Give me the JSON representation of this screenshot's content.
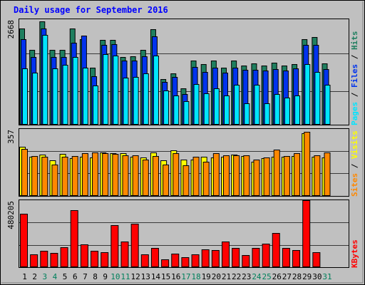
{
  "title": "Daily usage for September 2016",
  "colors": {
    "background": "#C0C0C0",
    "border": "#000000",
    "title": "#0000FF",
    "hits": "#1F7F5F",
    "files": "#0033EE",
    "pages": "#00E5FF",
    "visits": "#FFFF00",
    "sites": "#FF8800",
    "kbytes": "#FF0000",
    "weekend_label": "#00805C",
    "weekday_label": "#000000"
  },
  "chart_data": [
    {
      "type": "bar",
      "panel": "hits-files-pages",
      "ymax_label": "2668",
      "ylim": [
        0,
        2668
      ],
      "legend": [
        {
          "label": "Hits",
          "color": "#1F7F5F"
        },
        {
          "label": "Files",
          "color": "#0033EE"
        },
        {
          "label": "Pages",
          "color": "#00E5FF"
        }
      ],
      "categories": [
        "1",
        "2",
        "3",
        "4",
        "5",
        "6",
        "7",
        "8",
        "9",
        "10",
        "11",
        "12",
        "13",
        "14",
        "15",
        "16",
        "17",
        "18",
        "19",
        "20",
        "21",
        "22",
        "23",
        "24",
        "25",
        "26",
        "27",
        "28",
        "29",
        "30",
        "31"
      ],
      "weekend_days": [
        "3",
        "4",
        "10",
        "11",
        "17",
        "18",
        "24",
        "25",
        "31"
      ],
      "series": [
        {
          "name": "Hits",
          "values": [
            2470,
            1920,
            2650,
            1920,
            1920,
            2470,
            2200,
            1470,
            2180,
            2170,
            1740,
            1760,
            1920,
            2450,
            1170,
            1310,
            930,
            1640,
            1560,
            1640,
            1460,
            1650,
            1520,
            1580,
            1510,
            1590,
            1510,
            1550,
            2200,
            2240,
            1570
          ]
        },
        {
          "name": "Files",
          "values": [
            2200,
            1740,
            2460,
            1740,
            1740,
            2110,
            2280,
            1250,
            2050,
            2060,
            1640,
            1640,
            1760,
            2270,
            1100,
            1230,
            780,
            1480,
            1360,
            1460,
            1340,
            1470,
            1400,
            1410,
            1380,
            1420,
            1390,
            1440,
            2050,
            2050,
            1430
          ]
        },
        {
          "name": "Pages",
          "values": [
            1450,
            1330,
            2300,
            1450,
            1540,
            1730,
            1470,
            1000,
            1810,
            1780,
            1210,
            1230,
            1320,
            1770,
            880,
            750,
            600,
            1050,
            800,
            930,
            750,
            1020,
            550,
            1030,
            540,
            790,
            700,
            750,
            1560,
            1360,
            1030
          ]
        }
      ]
    },
    {
      "type": "bar",
      "panel": "visits-sites",
      "ymax_label": "357",
      "ylim": [
        0,
        357
      ],
      "legend": [
        {
          "label": "Visits",
          "color": "#FFFF00"
        },
        {
          "label": "Sites",
          "color": "#FF8800"
        }
      ],
      "categories": [
        "1",
        "2",
        "3",
        "4",
        "5",
        "6",
        "7",
        "8",
        "9",
        "10",
        "11",
        "12",
        "13",
        "14",
        "15",
        "16",
        "17",
        "18",
        "19",
        "20",
        "21",
        "22",
        "23",
        "24",
        "25",
        "26",
        "27",
        "28",
        "29",
        "30",
        "31"
      ],
      "series": [
        {
          "name": "Visits",
          "values": [
            268,
            212,
            225,
            194,
            228,
            204,
            214,
            209,
            235,
            231,
            231,
            215,
            210,
            235,
            195,
            247,
            198,
            199,
            215,
            211,
            214,
            227,
            216,
            187,
            207,
            213,
            212,
            218,
            342,
            214,
            210
          ]
        },
        {
          "name": "Sites",
          "values": [
            256,
            218,
            212,
            172,
            212,
            218,
            234,
            237,
            231,
            228,
            222,
            220,
            198,
            216,
            172,
            234,
            166,
            212,
            185,
            233,
            222,
            222,
            222,
            197,
            209,
            252,
            217,
            232,
            350,
            222,
            236
          ]
        }
      ]
    },
    {
      "type": "bar",
      "panel": "kbytes",
      "ymax_label": "480205",
      "ylim": [
        0,
        480205
      ],
      "legend": [
        {
          "label": "KBytes",
          "color": "#FF0000"
        }
      ],
      "categories": [
        "1",
        "2",
        "3",
        "4",
        "5",
        "6",
        "7",
        "8",
        "9",
        "10",
        "11",
        "12",
        "13",
        "14",
        "15",
        "16",
        "17",
        "18",
        "19",
        "20",
        "21",
        "22",
        "23",
        "24",
        "25",
        "26",
        "27",
        "28",
        "29",
        "30",
        "31"
      ],
      "series": [
        {
          "name": "KBytes",
          "values": [
            389000,
            95000,
            118000,
            102000,
            148000,
            420000,
            166000,
            121000,
            110000,
            306000,
            186000,
            318000,
            96000,
            141000,
            57000,
            100000,
            71000,
            96000,
            131000,
            123000,
            187000,
            141000,
            87000,
            139000,
            173000,
            253000,
            141000,
            127000,
            489000,
            108000,
            0
          ]
        }
      ]
    }
  ]
}
